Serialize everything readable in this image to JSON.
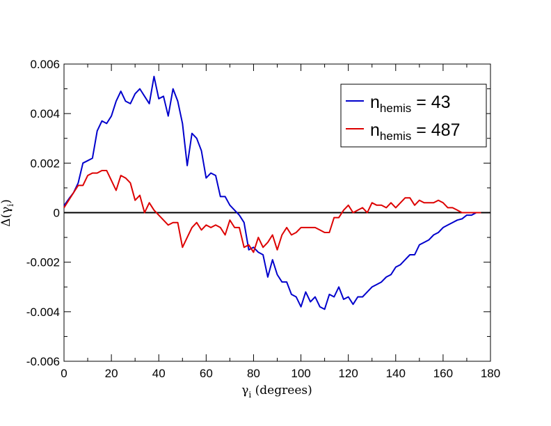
{
  "chart_data": {
    "type": "line",
    "xlabel": {
      "symbol": "γ",
      "sub": "i",
      "suffix": " (degrees)"
    },
    "ylabel": {
      "prefix": "Δ(",
      "symbol": "γ",
      "sub": "i",
      "suffix": ")"
    },
    "xlim": [
      0,
      180
    ],
    "ylim": [
      -0.006,
      0.006
    ],
    "xticks": [
      0,
      20,
      40,
      60,
      80,
      100,
      120,
      140,
      160,
      180
    ],
    "xtick_labels": [
      "0",
      "20",
      "40",
      "60",
      "80",
      "100",
      "120",
      "140",
      "160",
      "180"
    ],
    "yticks": [
      -0.006,
      -0.004,
      -0.002,
      0,
      0.002,
      0.004,
      0.006
    ],
    "ytick_labels": [
      "-0.006",
      "-0.004",
      "-0.002",
      "0",
      "0.002",
      "0.004",
      "0.006"
    ],
    "grid": false,
    "legend_position": "top-right",
    "zero_line": true,
    "series": [
      {
        "name_main": "n",
        "name_sub": "hemis",
        "name_rest": " = 43",
        "color": "#0000cc",
        "x": [
          0,
          2,
          4,
          6,
          8,
          10,
          12,
          14,
          16,
          18,
          20,
          22,
          24,
          26,
          28,
          30,
          32,
          34,
          36,
          38,
          40,
          42,
          44,
          46,
          48,
          50,
          52,
          54,
          56,
          58,
          60,
          62,
          64,
          66,
          68,
          70,
          72,
          74,
          76,
          78,
          80,
          82,
          84,
          86,
          88,
          90,
          92,
          94,
          96,
          98,
          100,
          102,
          104,
          106,
          108,
          110,
          112,
          114,
          116,
          118,
          120,
          122,
          124,
          126,
          128,
          130,
          132,
          134,
          136,
          138,
          140,
          142,
          144,
          146,
          148,
          150,
          152,
          154,
          156,
          158,
          160,
          162,
          164,
          166,
          168,
          170,
          172,
          174,
          176
        ],
        "y": [
          0.00028,
          0.00055,
          0.0008,
          0.0012,
          0.002,
          0.0021,
          0.0022,
          0.0033,
          0.0037,
          0.0036,
          0.0039,
          0.0045,
          0.0049,
          0.0045,
          0.0044,
          0.0048,
          0.005,
          0.0047,
          0.0044,
          0.0055,
          0.0046,
          0.0047,
          0.0039,
          0.005,
          0.0045,
          0.0036,
          0.0019,
          0.0032,
          0.003,
          0.0025,
          0.0014,
          0.0016,
          0.0015,
          0.00065,
          0.00065,
          0.0003,
          0.0001,
          -0.0001,
          -0.0004,
          -0.0015,
          -0.0014,
          -0.0016,
          -0.0017,
          -0.0026,
          -0.0019,
          -0.0025,
          -0.0028,
          -0.0028,
          -0.0033,
          -0.0034,
          -0.0038,
          -0.0032,
          -0.0036,
          -0.0034,
          -0.0038,
          -0.0039,
          -0.0033,
          -0.0034,
          -0.003,
          -0.0035,
          -0.0034,
          -0.0037,
          -0.0034,
          -0.0034,
          -0.0032,
          -0.003,
          -0.0029,
          -0.0028,
          -0.0026,
          -0.0025,
          -0.0022,
          -0.0021,
          -0.0019,
          -0.0017,
          -0.0017,
          -0.0013,
          -0.0012,
          -0.0011,
          -0.0009,
          -0.0008,
          -0.0006,
          -0.0005,
          -0.0004,
          -0.0003,
          -0.00025,
          -0.0001,
          -0.0001,
          0.0,
          0.0
        ]
      },
      {
        "name_main": "n",
        "name_sub": "hemis",
        "name_rest": " = 487",
        "color": "#dd0000",
        "x": [
          0,
          2,
          4,
          6,
          8,
          10,
          12,
          14,
          16,
          18,
          20,
          22,
          24,
          26,
          28,
          30,
          32,
          34,
          36,
          38,
          40,
          42,
          44,
          46,
          48,
          50,
          52,
          54,
          56,
          58,
          60,
          62,
          64,
          66,
          68,
          70,
          72,
          74,
          76,
          78,
          80,
          82,
          84,
          86,
          88,
          90,
          92,
          94,
          96,
          98,
          100,
          102,
          104,
          106,
          108,
          110,
          112,
          114,
          116,
          118,
          120,
          122,
          124,
          126,
          128,
          130,
          132,
          134,
          136,
          138,
          140,
          142,
          144,
          146,
          148,
          150,
          152,
          154,
          156,
          158,
          160,
          162,
          164,
          166,
          168,
          170,
          172,
          174,
          176
        ],
        "y": [
          0.0002,
          0.0005,
          0.0008,
          0.0011,
          0.0011,
          0.0015,
          0.0016,
          0.0016,
          0.0017,
          0.0017,
          0.0013,
          0.0009,
          0.0015,
          0.0014,
          0.0012,
          0.0005,
          0.0007,
          0.0,
          0.0004,
          0.0001,
          -0.0001,
          -0.0003,
          -0.0005,
          -0.0004,
          -0.0004,
          -0.0014,
          -0.001,
          -0.0006,
          -0.0004,
          -0.0007,
          -0.0005,
          -0.0006,
          -0.0005,
          -0.0006,
          -0.0009,
          -0.0003,
          -0.0006,
          -0.0006,
          -0.0014,
          -0.0013,
          -0.0016,
          -0.001,
          -0.0014,
          -0.0012,
          -0.0009,
          -0.0015,
          -0.0009,
          -0.0006,
          -0.0009,
          -0.0008,
          -0.0006,
          -0.0006,
          -0.0006,
          -0.0006,
          -0.0007,
          -0.0008,
          -0.0008,
          -0.0002,
          -0.0002,
          0.0001,
          0.0003,
          0.0,
          0.0001,
          0.0002,
          0.0,
          0.0004,
          0.0003,
          0.0003,
          0.0002,
          0.0004,
          0.0002,
          0.0004,
          0.0006,
          0.0006,
          0.0003,
          0.0005,
          0.0004,
          0.0004,
          0.0004,
          0.0005,
          0.0004,
          0.0002,
          0.0002,
          0.0001,
          0.0,
          0.0,
          0.0,
          0.0,
          0.0
        ]
      }
    ]
  }
}
